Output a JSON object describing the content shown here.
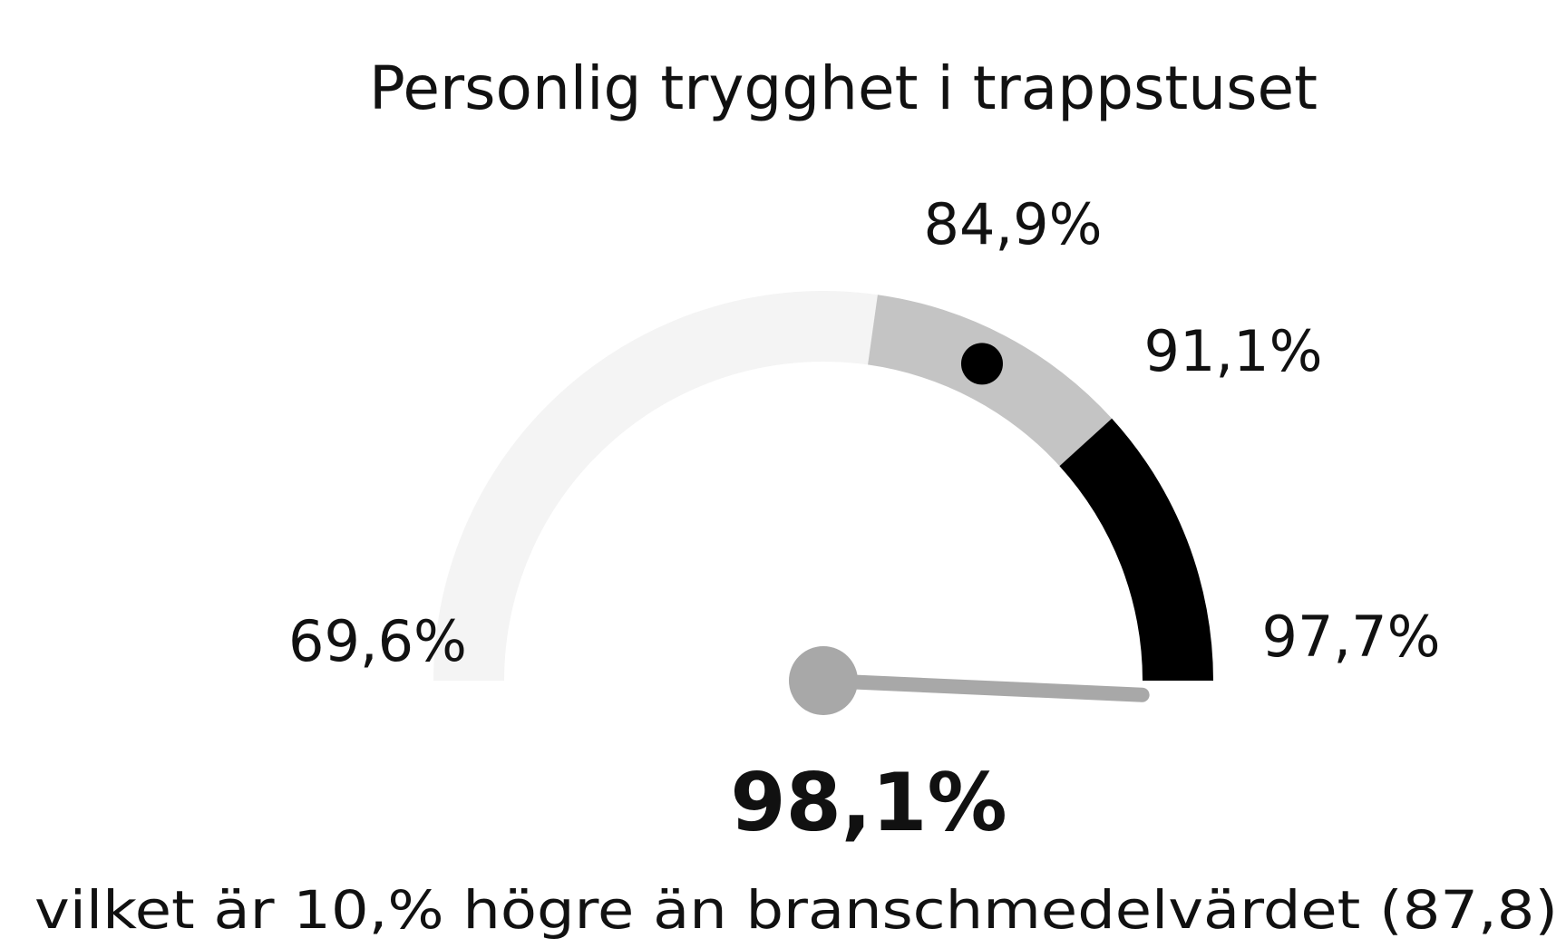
{
  "chart_data": {
    "type": "gauge",
    "title": "Personlig trygghet i trappstuset",
    "ylim": [
      69.6,
      97.7
    ],
    "yticks": [
      {
        "value": 69.6,
        "label": "69,6%"
      },
      {
        "value": 84.9,
        "label": "84,9%"
      },
      {
        "value": 91.1,
        "label": "91,1%"
      },
      {
        "value": 97.7,
        "label": "97,7%"
      }
    ],
    "band_colors": [
      "#f4f4f4",
      "#c4c4c4",
      "#000000"
    ],
    "value": 98.1,
    "value_label": "98,1%",
    "benchmark": 87.8,
    "subtitle": "vilket är 10,% högre än branschmedelvärdet (87,8)"
  }
}
